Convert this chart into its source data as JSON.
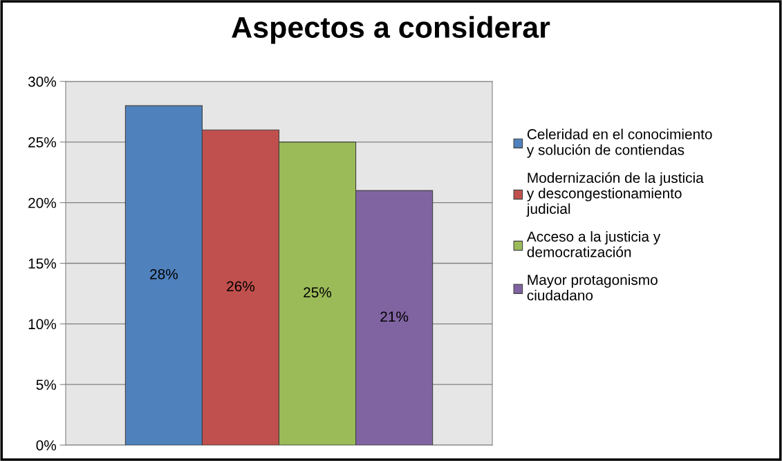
{
  "chart_data": {
    "type": "bar",
    "title": "Aspectos a considerar",
    "categories": [
      null
    ],
    "series": [
      {
        "name": "Celeridad en el conocimiento\ny solución de contiendas",
        "color": "#4f81bd",
        "values": [
          28
        ],
        "value_labels": [
          "28%"
        ]
      },
      {
        "name": "Modernización de la justicia\ny descongestionamiento\njudicial",
        "color": "#c0504d",
        "values": [
          26
        ],
        "value_labels": [
          "26%"
        ]
      },
      {
        "name": "Acceso a la justicia y\ndemocratización",
        "color": "#9bbb59",
        "values": [
          25
        ],
        "value_labels": [
          "25%"
        ]
      },
      {
        "name": "Mayor protagonismo\nciudadano",
        "color": "#8064a2",
        "values": [
          21
        ],
        "value_labels": [
          "21%"
        ]
      }
    ],
    "ylim": [
      0,
      30
    ],
    "yticks": [
      {
        "value": 0,
        "label": "0%"
      },
      {
        "value": 5,
        "label": "5%"
      },
      {
        "value": 10,
        "label": "10%"
      },
      {
        "value": 15,
        "label": "15%"
      },
      {
        "value": 20,
        "label": "20%"
      },
      {
        "value": 25,
        "label": "25%"
      },
      {
        "value": 30,
        "label": "30%"
      }
    ],
    "grid": "y",
    "legend": "right"
  }
}
